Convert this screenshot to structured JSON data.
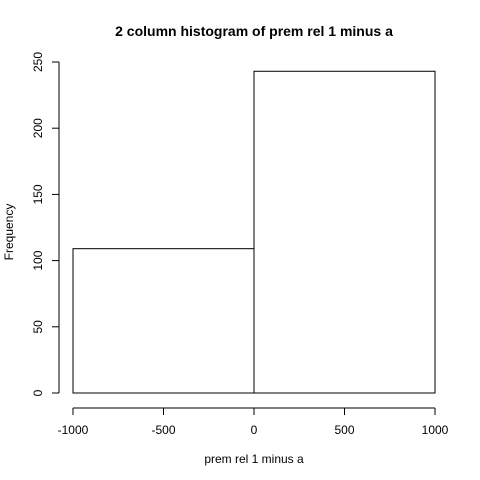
{
  "chart_data": {
    "type": "bar",
    "title": "2 column histogram of prem rel 1 minus a",
    "xlabel": "prem rel 1 minus a",
    "ylabel": "Frequency",
    "bins": [
      {
        "x0": -1000,
        "x1": 0,
        "count": 109
      },
      {
        "x0": 0,
        "x1": 1000,
        "count": 243
      }
    ],
    "xlim": [
      -1000,
      1000
    ],
    "ylim": [
      0,
      250
    ],
    "x_ticks": [
      -1000,
      -500,
      0,
      500,
      1000
    ],
    "y_ticks": [
      0,
      50,
      100,
      150,
      200,
      250
    ],
    "x_tick_labels": [
      "-1000",
      "-500",
      "0",
      "500",
      "1000"
    ],
    "y_tick_labels": [
      "0",
      "50",
      "100",
      "150",
      "200",
      "250"
    ],
    "grid": false,
    "bar_fill": "#ffffff",
    "bar_stroke": "#000000"
  }
}
